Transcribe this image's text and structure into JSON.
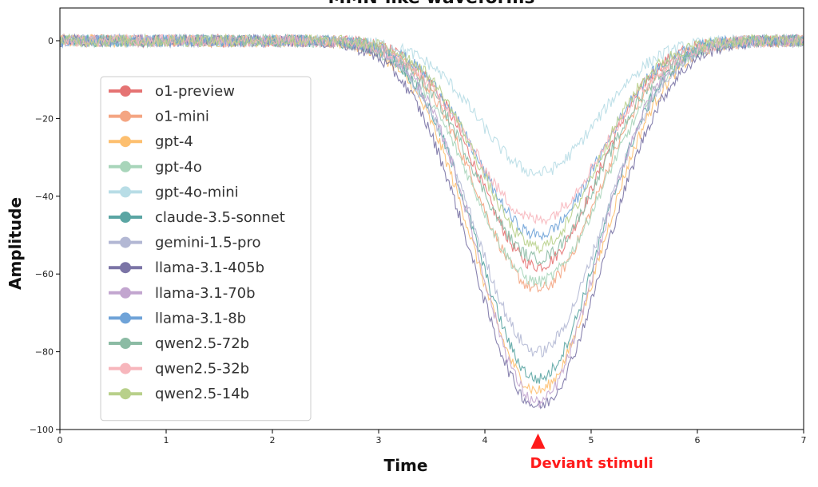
{
  "chart_data": {
    "type": "line",
    "title": "MMN-like waveforms",
    "xlabel": "Time",
    "ylabel": "Amplitude",
    "xlim": [
      0,
      7
    ],
    "ylim": [
      -100,
      5
    ],
    "x_ticks": [
      0,
      1,
      2,
      3,
      4,
      5,
      6,
      7
    ],
    "y_ticks": [
      0,
      -20,
      -40,
      -60,
      -80,
      -100
    ],
    "grid": false,
    "legend_position": "center-left",
    "waveform": "gaussian dip",
    "dip_center": 4.5,
    "baseline": 0,
    "series": [
      {
        "name": "o1-preview",
        "color": "#e57373",
        "peak": -58
      },
      {
        "name": "o1-mini",
        "color": "#f4a582",
        "peak": -64
      },
      {
        "name": "gpt-4",
        "color": "#fdbf6f",
        "peak": -90
      },
      {
        "name": "gpt-4o",
        "color": "#a8d5ba",
        "peak": -62
      },
      {
        "name": "gpt-4o-mini",
        "color": "#b8dde6",
        "peak": -34
      },
      {
        "name": "claude-3.5-sonnet",
        "color": "#5aa5a3",
        "peak": -87
      },
      {
        "name": "gemini-1.5-pro",
        "color": "#b3b8d4",
        "peak": -80
      },
      {
        "name": "llama-3.1-405b",
        "color": "#7b74a6",
        "peak": -94
      },
      {
        "name": "llama-3.1-70b",
        "color": "#c2a5cf",
        "peak": -93
      },
      {
        "name": "llama-3.1-8b",
        "color": "#6fa3d8",
        "peak": -50
      },
      {
        "name": "qwen2.5-72b",
        "color": "#8bbba4",
        "peak": -56
      },
      {
        "name": "qwen2.5-32b",
        "color": "#f7b6bc",
        "peak": -46
      },
      {
        "name": "qwen2.5-14b",
        "color": "#b8d08a",
        "peak": -53
      }
    ],
    "annotation": {
      "text": "Deviant stimuli",
      "x": 4.5,
      "color": "#ff1a1a"
    }
  }
}
